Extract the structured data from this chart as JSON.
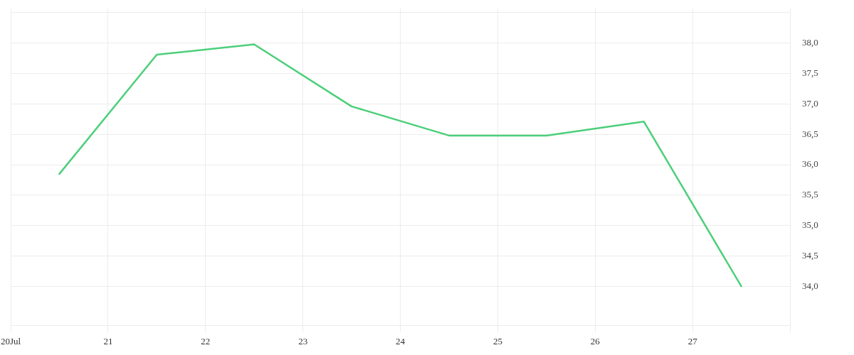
{
  "chart_data": {
    "type": "line",
    "x": [
      "--07-20T12:00",
      "--07-21T12:00",
      "--07-22T12:00",
      "--07-23T12:00",
      "--07-24T12:00",
      "--07-25T12:00",
      "--07-26T12:00",
      "--07-27T12:00"
    ],
    "series": [
      {
        "color": "#4ccf7a",
        "values": [
          35.85,
          37.81,
          37.98,
          36.96,
          36.48,
          36.48,
          36.71,
          34.0
        ]
      }
    ],
    "xlim": [
      "--07-20",
      "--07-28"
    ],
    "xticks": [
      {
        "value": "--07-20",
        "label": "20Jul"
      },
      {
        "value": "--07-21",
        "label": "21"
      },
      {
        "value": "--07-22",
        "label": "22"
      },
      {
        "value": "--07-23",
        "label": "23"
      },
      {
        "value": "--07-24",
        "label": "24"
      },
      {
        "value": "--07-25",
        "label": "25"
      },
      {
        "value": "--07-26",
        "label": "26"
      },
      {
        "value": "--07-27",
        "label": "27"
      },
      {
        "value": "--07-28",
        "label": null
      }
    ],
    "ylim": [
      33.36,
      38.57
    ],
    "yticks": [
      {
        "value": 34,
        "label": "34,0"
      },
      {
        "value": 34.5,
        "label": "34,5"
      },
      {
        "value": 35,
        "label": "35,0"
      },
      {
        "value": 35.5,
        "label": "35,5"
      },
      {
        "value": 36,
        "label": "36,0"
      },
      {
        "value": 36.5,
        "label": "36,5"
      },
      {
        "value": 37,
        "label": "37,0"
      },
      {
        "value": 37.5,
        "label": "37,5"
      },
      {
        "value": 38,
        "label": "38,0"
      },
      {
        "value": 38.5,
        "label": null
      }
    ],
    "grid": true
  }
}
